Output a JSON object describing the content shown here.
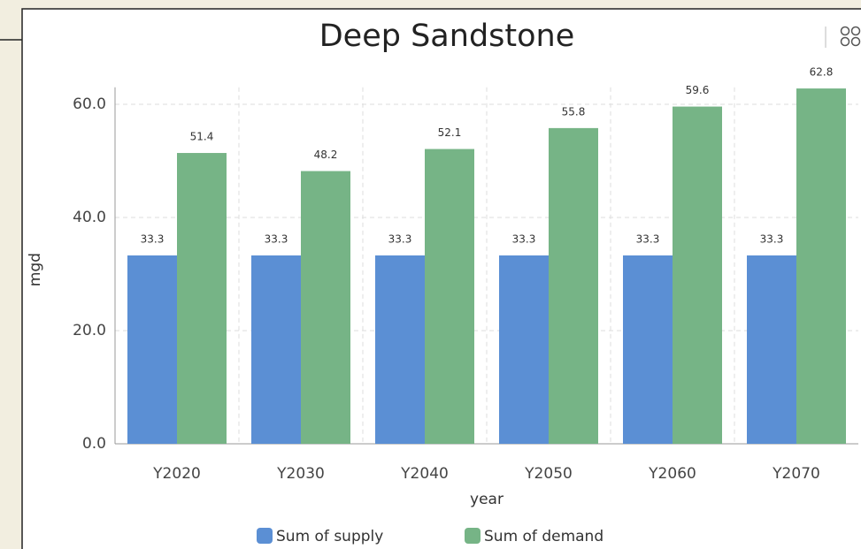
{
  "chart_data": {
    "type": "bar",
    "title": "Deep Sandstone",
    "categories": [
      "Y2020",
      "Y2030",
      "Y2040",
      "Y2050",
      "Y2060",
      "Y2070"
    ],
    "series": [
      {
        "name": "Sum of supply",
        "color": "#5b8fd4",
        "values": [
          33.3,
          33.3,
          33.3,
          33.3,
          33.3,
          33.3
        ]
      },
      {
        "name": "Sum of demand",
        "color": "#76b486",
        "values": [
          51.4,
          48.2,
          52.1,
          55.8,
          59.6,
          62.8
        ]
      }
    ],
    "xlabel": "year",
    "ylabel": "mgd",
    "ylim": [
      0,
      63
    ],
    "yticks": [
      {
        "value": 0,
        "label": "0.0"
      },
      {
        "value": 20,
        "label": "20.0"
      },
      {
        "value": 40,
        "label": "40.0"
      },
      {
        "value": 60,
        "label": "60.0"
      }
    ],
    "grid": true,
    "legend": "bottom"
  }
}
